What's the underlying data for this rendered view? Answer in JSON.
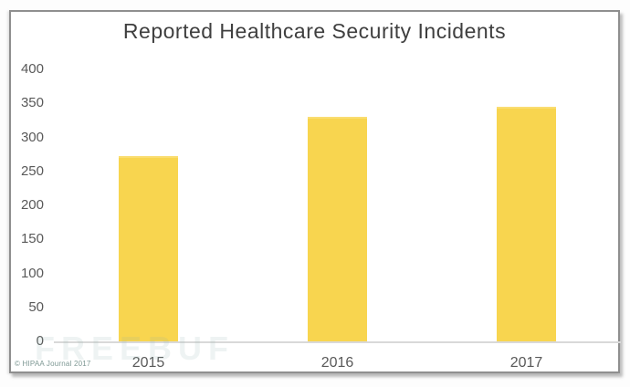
{
  "chart": {
    "source_note": "© HIPAA Journal 2017",
    "ghost_watermark": "FREEBUF",
    "colors": {
      "bar": "#F8D54F",
      "title_text": "#3F3F3F",
      "axis_text": "#595959",
      "axis_line": "#D9D9D9",
      "frame_border": "#8F8F8F",
      "background": "#FFFFFF"
    }
  },
  "chart_data": {
    "type": "bar",
    "title": "Reported Healthcare Security Incidents",
    "categories": [
      "2015",
      "2016",
      "2017"
    ],
    "values": [
      270,
      328,
      342
    ],
    "xlabel": "",
    "ylabel": "",
    "ylim": [
      0,
      400
    ],
    "ytick_step": 50,
    "yticks": [
      400,
      350,
      300,
      250,
      200,
      150,
      100,
      50,
      0
    ],
    "grid": false,
    "legend": false,
    "bar_color": "#F8D54F"
  }
}
